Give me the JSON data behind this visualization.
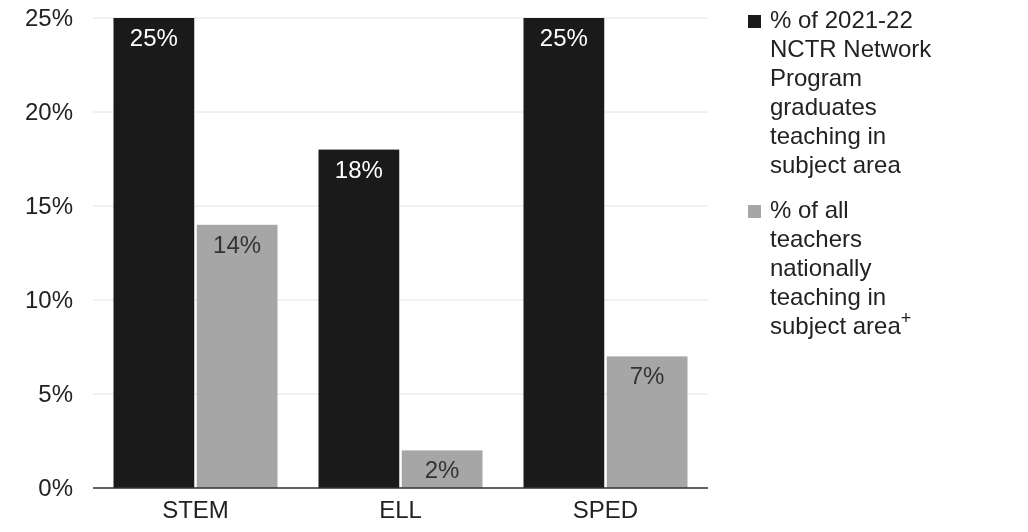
{
  "chart_data": {
    "type": "bar",
    "categories": [
      "STEM",
      "ELL",
      "SPED"
    ],
    "series": [
      {
        "name": "% of 2021-22 NCTR Network Program graduates teaching in subject area",
        "color": "#1a1a1a",
        "values": [
          25,
          18,
          25
        ],
        "value_labels": [
          "25%",
          "18%",
          "25%"
        ]
      },
      {
        "name": "% of all teachers nationally teaching in subject area$^{+}$",
        "color": "#a6a6a6",
        "values": [
          14,
          2,
          7
        ],
        "value_labels": [
          "14%",
          "2%",
          "7%"
        ]
      }
    ],
    "ylim": [
      0,
      25
    ],
    "yticks": [
      {
        "value": 0,
        "label": "0%"
      },
      {
        "value": 5,
        "label": "5%"
      },
      {
        "value": 10,
        "label": "10%"
      },
      {
        "value": 15,
        "label": "15%"
      },
      {
        "value": 20,
        "label": "20%"
      },
      {
        "value": 25,
        "label": "25%"
      }
    ],
    "grid": "y",
    "legend": "right"
  }
}
